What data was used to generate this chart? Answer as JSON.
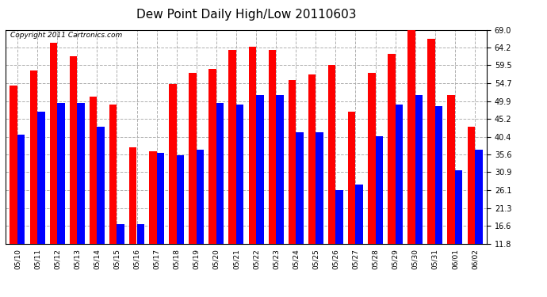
{
  "title": "Dew Point Daily High/Low 20110603",
  "copyright": "Copyright 2011 Cartronics.com",
  "dates": [
    "05/10",
    "05/11",
    "05/12",
    "05/13",
    "05/14",
    "05/15",
    "05/16",
    "05/17",
    "05/18",
    "05/19",
    "05/20",
    "05/21",
    "05/22",
    "05/23",
    "05/24",
    "05/25",
    "05/26",
    "05/27",
    "05/28",
    "05/29",
    "05/30",
    "05/31",
    "06/01",
    "06/02"
  ],
  "highs": [
    54.0,
    58.0,
    65.5,
    62.0,
    51.0,
    49.0,
    37.5,
    36.5,
    54.5,
    57.5,
    58.5,
    63.5,
    64.5,
    63.5,
    55.5,
    57.0,
    59.5,
    47.0,
    57.5,
    62.5,
    70.0,
    66.5,
    51.5,
    43.0
  ],
  "lows": [
    41.0,
    47.0,
    49.5,
    49.5,
    43.0,
    17.0,
    17.0,
    36.0,
    35.5,
    37.0,
    49.5,
    49.0,
    51.5,
    51.5,
    41.5,
    41.5,
    26.0,
    27.5,
    40.5,
    49.0,
    51.5,
    48.5,
    31.5,
    37.0
  ],
  "bar_color_high": "#ff0000",
  "bar_color_low": "#0000ff",
  "bg_color": "#ffffff",
  "grid_color": "#b0b0b0",
  "yticks": [
    11.8,
    16.6,
    21.3,
    26.1,
    30.9,
    35.6,
    40.4,
    45.2,
    49.9,
    54.7,
    59.5,
    64.2,
    69.0
  ],
  "ymin": 11.8,
  "ymax": 69.0,
  "title_fontsize": 11,
  "copyright_fontsize": 6.5,
  "tick_fontsize": 7,
  "xtick_fontsize": 6.5
}
